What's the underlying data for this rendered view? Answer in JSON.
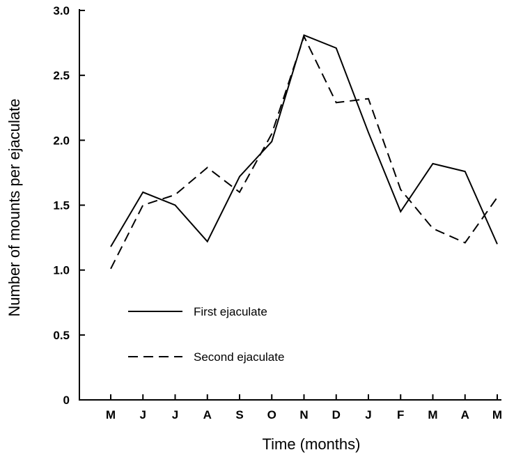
{
  "chart_data": {
    "type": "line",
    "title": "",
    "xlabel": "Time (months)",
    "ylabel": "Number of mounts per ejaculate",
    "categories": [
      "M",
      "J",
      "J",
      "A",
      "S",
      "O",
      "N",
      "D",
      "J",
      "F",
      "M",
      "A",
      "M"
    ],
    "yticks": [
      "0",
      "0.5",
      "1.0",
      "1.5",
      "2.0",
      "2.5",
      "3.0"
    ],
    "ylim": [
      0,
      3.0
    ],
    "grid": false,
    "legend_position": "lower-left",
    "series": [
      {
        "name": "First ejaculate",
        "style": "solid",
        "color": "#000000",
        "values": [
          1.18,
          1.6,
          1.5,
          1.22,
          1.72,
          1.99,
          2.81,
          2.71,
          2.06,
          1.45,
          1.82,
          1.76,
          1.2
        ]
      },
      {
        "name": "Second ejaculate",
        "style": "dashed",
        "color": "#000000",
        "values": [
          1.01,
          1.5,
          1.58,
          1.79,
          1.6,
          2.05,
          2.8,
          2.29,
          2.32,
          1.62,
          1.32,
          1.21,
          1.56
        ]
      }
    ]
  }
}
